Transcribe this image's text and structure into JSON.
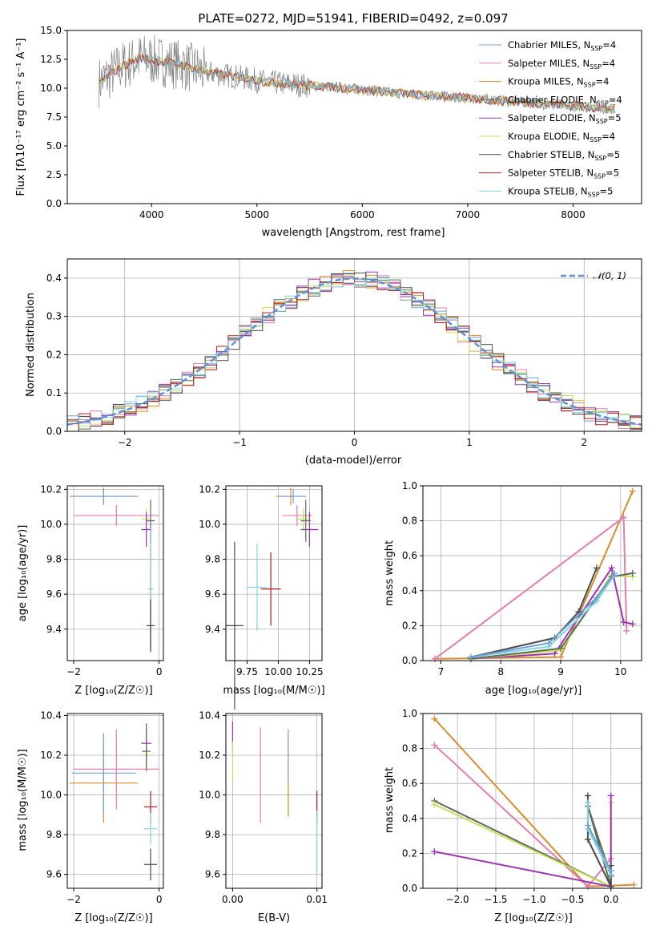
{
  "colors": {
    "chabrier_miles": "#6f9fd8",
    "salpeter_miles": "#e37cb0",
    "kroupa_miles": "#d98c2b",
    "chabrier_elodie": "#5a6c5a",
    "salpeter_elodie": "#9b32b2",
    "kroupa_elodie": "#c6df5a",
    "chabrier_stelib": "#4a4a4a",
    "salpeter_stelib": "#b31b1b",
    "kroupa_stelib": "#7fd5e0",
    "gauss": "#5f8fd6",
    "data": "#808080"
  },
  "chart_data": [
    {
      "id": "spectrum",
      "type": "line",
      "title": "PLATE=0272, MJD=51941, FIBERID=0492, z=0.097",
      "xlabel": "wavelength [Angstrom, rest frame]",
      "ylabel": "Flux [fλ10⁻¹⁷ erg cm⁻² s⁻¹ A⁻¹]",
      "xlim": [
        3200,
        8650
      ],
      "ylim": [
        0,
        15
      ],
      "xticks": [
        "4000",
        "5000",
        "6000",
        "7000",
        "8000"
      ],
      "yticks": [
        "0.0",
        "2.5",
        "5.0",
        "7.5",
        "10.0",
        "12.5",
        "15.0"
      ],
      "legend": [
        {
          "label": "Chabrier MILES, N",
          "sub": "SSP",
          "tail": "=4",
          "color_key": "chabrier_miles"
        },
        {
          "label": "Salpeter MILES, N",
          "sub": "SSP",
          "tail": "=4",
          "color_key": "salpeter_miles"
        },
        {
          "label": "Kroupa MILES, N",
          "sub": "SSP",
          "tail": "=4",
          "color_key": "kroupa_miles"
        },
        {
          "label": "Chabrier ELODIE, N",
          "sub": "SSP",
          "tail": "=4",
          "color_key": "chabrier_elodie"
        },
        {
          "label": "Salpeter ELODIE, N",
          "sub": "SSP",
          "tail": "=5",
          "color_key": "salpeter_elodie"
        },
        {
          "label": "Kroupa ELODIE, N",
          "sub": "SSP",
          "tail": "=4",
          "color_key": "kroupa_elodie"
        },
        {
          "label": "Chabrier STELIB, N",
          "sub": "SSP",
          "tail": "=5",
          "color_key": "chabrier_stelib"
        },
        {
          "label": "Salpeter STELIB, N",
          "sub": "SSP",
          "tail": "=5",
          "color_key": "salpeter_stelib"
        },
        {
          "label": "Kroupa STELIB, N",
          "sub": "SSP",
          "tail": "=5",
          "color_key": "kroupa_stelib"
        }
      ],
      "series": [
        {
          "x": [
            3500,
            3700,
            3900,
            4100,
            4300,
            4500,
            4800,
            5100,
            5400,
            5700,
            6000,
            6300,
            6600,
            6900,
            7200,
            7500,
            7800,
            8100,
            8400
          ],
          "y": [
            10.5,
            11.8,
            12.6,
            12.3,
            12.0,
            11.4,
            11.0,
            10.5,
            10.3,
            10.1,
            9.9,
            9.6,
            9.4,
            9.2,
            9.0,
            8.8,
            8.6,
            8.4,
            8.2
          ]
        }
      ]
    },
    {
      "id": "residuals",
      "type": "line",
      "xlabel": "(data-model)/error",
      "ylabel": "Normed distribution",
      "xlim": [
        -2.5,
        2.5
      ],
      "ylim": [
        0,
        0.45
      ],
      "xticks": [
        "−2",
        "−1",
        "0",
        "1",
        "2"
      ],
      "yticks": [
        "0.0",
        "0.1",
        "0.2",
        "0.3",
        "0.4"
      ],
      "legend": [
        {
          "label": "𝒩(0, 1)",
          "color_key": "gauss"
        }
      ],
      "series": [
        {
          "name": "𝒩(0, 1)",
          "x": [
            -2.5,
            -2.0,
            -1.5,
            -1.0,
            -0.5,
            0,
            0.5,
            1.0,
            1.5,
            2.0,
            2.5
          ],
          "y": [
            0.018,
            0.054,
            0.13,
            0.242,
            0.352,
            0.399,
            0.352,
            0.242,
            0.13,
            0.054,
            0.018
          ]
        }
      ]
    },
    {
      "id": "age-vs-Z",
      "type": "scatter",
      "xlabel": "Z [log₁₀(Z/Z☉)]",
      "ylabel": "age  [log₁₀(age/yr)]",
      "xlim": [
        -2.15,
        0.1
      ],
      "ylim": [
        9.22,
        10.22
      ],
      "xticks": [
        "−2",
        "0"
      ],
      "yticks": [
        "9.4",
        "9.6",
        "9.8",
        "10.0",
        "10.2"
      ],
      "points": [
        {
          "x": -1.3,
          "y": 10.16,
          "xerr": 0.8,
          "yerr": 0.05,
          "color_key": "kroupa_miles"
        },
        {
          "x": -1.3,
          "y": 10.16,
          "xerr": 0.75,
          "yerr": 0.04,
          "color_key": "chabrier_miles"
        },
        {
          "x": -1.0,
          "y": 10.05,
          "xerr": 1.0,
          "yerr": 0.06,
          "color_key": "salpeter_miles"
        },
        {
          "x": -0.3,
          "y": 10.03,
          "xerr": 0.1,
          "yerr": 0.06,
          "color_key": "kroupa_elodie"
        },
        {
          "x": -0.3,
          "y": 9.97,
          "xerr": 0.12,
          "yerr": 0.1,
          "color_key": "salpeter_elodie"
        },
        {
          "x": -0.2,
          "y": 10.02,
          "xerr": 0.1,
          "yerr": 0.12,
          "color_key": "chabrier_elodie"
        },
        {
          "x": -0.2,
          "y": 9.63,
          "xerr": 0.05,
          "yerr": 0.35,
          "color_key": "salpeter_stelib"
        },
        {
          "x": -0.2,
          "y": 9.63,
          "xerr": 0.05,
          "yerr": 0.35,
          "color_key": "kroupa_stelib"
        },
        {
          "x": -0.2,
          "y": 9.42,
          "xerr": 0.1,
          "yerr": 0.15,
          "color_key": "chabrier_stelib"
        }
      ]
    },
    {
      "id": "age-vs-mass",
      "type": "scatter",
      "xlabel": "mass [log₁₀(M/M☉)]",
      "xlim": [
        9.58,
        10.35
      ],
      "ylim": [
        9.22,
        10.22
      ],
      "xticks": [
        "9.75",
        "10.00",
        "10.25"
      ],
      "yticks": [
        "9.4",
        "9.6",
        "9.8",
        "10.0",
        "10.2"
      ],
      "points": [
        {
          "x": 10.1,
          "y": 10.16,
          "xerr": 0.12,
          "yerr": 0.05,
          "color_key": "kroupa_miles"
        },
        {
          "x": 10.12,
          "y": 10.16,
          "xerr": 0.1,
          "yerr": 0.04,
          "color_key": "chabrier_miles"
        },
        {
          "x": 10.15,
          "y": 10.05,
          "xerr": 0.12,
          "yerr": 0.06,
          "color_key": "salpeter_miles"
        },
        {
          "x": 10.2,
          "y": 10.03,
          "xerr": 0.06,
          "yerr": 0.06,
          "color_key": "kroupa_elodie"
        },
        {
          "x": 10.25,
          "y": 9.97,
          "xerr": 0.07,
          "yerr": 0.1,
          "color_key": "salpeter_elodie"
        },
        {
          "x": 10.22,
          "y": 10.02,
          "xerr": 0.04,
          "yerr": 0.12,
          "color_key": "chabrier_elodie"
        },
        {
          "x": 9.94,
          "y": 9.63,
          "xerr": 0.08,
          "yerr": 0.21,
          "color_key": "salpeter_stelib"
        },
        {
          "x": 9.83,
          "y": 9.64,
          "xerr": 0.08,
          "yerr": 0.25,
          "color_key": "kroupa_stelib"
        },
        {
          "x": 9.65,
          "y": 9.42,
          "xerr": 0.07,
          "yerr": 0.48,
          "color_key": "chabrier_stelib"
        }
      ]
    },
    {
      "id": "massweight-vs-age",
      "type": "line",
      "xlabel": "age  [log₁₀(age/yr)]",
      "ylabel": "mass weight",
      "xlim": [
        6.7,
        10.35
      ],
      "ylim": [
        0,
        1.0
      ],
      "xticks": [
        "7",
        "8",
        "9",
        "10"
      ],
      "yticks": [
        "0.0",
        "0.2",
        "0.4",
        "0.6",
        "0.8",
        "1.0"
      ],
      "series": [
        {
          "color_key": "kroupa_miles",
          "x": [
            6.9,
            9.0,
            10.2
          ],
          "y": [
            0.01,
            0.02,
            0.97
          ]
        },
        {
          "color_key": "salpeter_miles",
          "x": [
            6.9,
            10.05,
            10.1
          ],
          "y": [
            0.01,
            0.82,
            0.17
          ]
        },
        {
          "color_key": "chabrier_stelib",
          "x": [
            7.5,
            8.9,
            9.3,
            9.6
          ],
          "y": [
            0.02,
            0.13,
            0.28,
            0.53
          ]
        },
        {
          "color_key": "salpeter_elodie",
          "x": [
            7.5,
            8.9,
            9.85,
            10.05,
            10.2
          ],
          "y": [
            0.01,
            0.04,
            0.53,
            0.22,
            0.21
          ]
        },
        {
          "color_key": "kroupa_elodie",
          "x": [
            7.5,
            9.0,
            9.85,
            10.2
          ],
          "y": [
            0.01,
            0.06,
            0.49,
            0.48
          ]
        },
        {
          "color_key": "chabrier_elodie",
          "x": [
            7.5,
            9.0,
            9.85,
            10.2
          ],
          "y": [
            0.01,
            0.07,
            0.48,
            0.5
          ]
        },
        {
          "color_key": "kroupa_stelib",
          "x": [
            7.5,
            8.8,
            9.6,
            9.9
          ],
          "y": [
            0.02,
            0.08,
            0.34,
            0.49
          ]
        },
        {
          "color_key": "chabrier_miles",
          "x": [
            7.5,
            8.8,
            9.6,
            9.9
          ],
          "y": [
            0.02,
            0.1,
            0.36,
            0.5
          ]
        }
      ]
    },
    {
      "id": "mass-vs-Z",
      "type": "scatter",
      "xlabel": "Z [log₁₀(Z/Z☉)]",
      "ylabel": "mass [log₁₀(M/M☉)]",
      "xlim": [
        -2.15,
        0.1
      ],
      "ylim": [
        9.53,
        10.41
      ],
      "xticks": [
        "−2",
        "0"
      ],
      "yticks": [
        "9.6",
        "9.8",
        "10.0",
        "10.2",
        "10.4"
      ],
      "points": [
        {
          "x": -1.3,
          "y": 10.06,
          "xerr": 0.8,
          "yerr": 0.2,
          "color_key": "kroupa_miles"
        },
        {
          "x": -1.3,
          "y": 10.11,
          "xerr": 0.75,
          "yerr": 0.2,
          "color_key": "chabrier_miles"
        },
        {
          "x": -1.0,
          "y": 10.13,
          "xerr": 1.0,
          "yerr": 0.2,
          "color_key": "salpeter_miles"
        },
        {
          "x": -0.3,
          "y": 10.2,
          "xerr": 0.1,
          "yerr": 0.08,
          "color_key": "kroupa_elodie"
        },
        {
          "x": -0.3,
          "y": 10.26,
          "xerr": 0.12,
          "yerr": 0.1,
          "color_key": "salpeter_elodie"
        },
        {
          "x": -0.3,
          "y": 10.22,
          "xerr": 0.1,
          "yerr": 0.1,
          "color_key": "chabrier_elodie"
        },
        {
          "x": -0.2,
          "y": 9.94,
          "xerr": 0.15,
          "yerr": 0.08,
          "color_key": "salpeter_stelib"
        },
        {
          "x": -0.2,
          "y": 9.83,
          "xerr": 0.15,
          "yerr": 0.08,
          "color_key": "kroupa_stelib"
        },
        {
          "x": -0.2,
          "y": 9.65,
          "xerr": 0.15,
          "yerr": 0.08,
          "color_key": "chabrier_stelib"
        }
      ]
    },
    {
      "id": "mass-vs-ebv",
      "type": "scatter",
      "xlabel": "E(B-V)",
      "xlim": [
        -0.0008,
        0.0106
      ],
      "ylim": [
        9.53,
        10.41
      ],
      "xticks": [
        "0.00",
        "0.01"
      ],
      "yticks": [
        "9.6",
        "9.8",
        "10.0",
        "10.2",
        "10.4"
      ],
      "points": [
        {
          "x": 0.0,
          "y": 10.3,
          "xerr": 0,
          "yerr": 0.07,
          "color_key": "salpeter_elodie"
        },
        {
          "x": 0.0,
          "y": 10.17,
          "xerr": 0,
          "yerr": 0.1,
          "color_key": "kroupa_elodie"
        },
        {
          "x": 0.0033,
          "y": 10.1,
          "xerr": 0,
          "yerr": 0.24,
          "color_key": "salpeter_miles"
        },
        {
          "x": 0.0066,
          "y": 10.1,
          "xerr": 0,
          "yerr": 0.21,
          "color_key": "kroupa_miles"
        },
        {
          "x": 0.0066,
          "y": 10.2,
          "xerr": 0,
          "yerr": 0.13,
          "color_key": "chabrier_miles"
        },
        {
          "x": 0.01,
          "y": 9.94,
          "xerr": 0,
          "yerr": 0.08,
          "color_key": "salpeter_stelib"
        },
        {
          "x": 0.01,
          "y": 9.76,
          "xerr": 0,
          "yerr": 0.16,
          "color_key": "kroupa_stelib"
        }
      ]
    },
    {
      "id": "massweight-vs-Z",
      "type": "line",
      "xlabel": "Z [log₁₀(Z/Z☉)]",
      "ylabel": "mass weight",
      "xlim": [
        -2.45,
        0.4
      ],
      "ylim": [
        0,
        1.0
      ],
      "xticks": [
        "−2.0",
        "−1.5",
        "−1.0",
        "−0.5",
        "0.0"
      ],
      "yticks": [
        "0.0",
        "0.2",
        "0.4",
        "0.6",
        "0.8",
        "1.0"
      ],
      "series": [
        {
          "color_key": "kroupa_miles",
          "x": [
            -2.3,
            -0.3,
            0.3
          ],
          "y": [
            0.97,
            0.01,
            0.02
          ]
        },
        {
          "color_key": "salpeter_miles",
          "x": [
            -2.3,
            -0.3,
            0.0
          ],
          "y": [
            0.82,
            0.01,
            0.17
          ]
        },
        {
          "color_key": "chabrier_elodie",
          "x": [
            -2.3,
            0.0,
            -0.3,
            0.0
          ],
          "y": [
            0.5,
            0.01,
            0.47,
            0.07
          ]
        },
        {
          "color_key": "kroupa_elodie",
          "x": [
            -2.3,
            0.0,
            0.0
          ],
          "y": [
            0.48,
            0.01,
            0.49
          ]
        },
        {
          "color_key": "salpeter_elodie",
          "x": [
            -2.3,
            0.0,
            0.0
          ],
          "y": [
            0.21,
            0.01,
            0.53
          ]
        },
        {
          "color_key": "chabrier_stelib",
          "x": [
            -0.3,
            -0.3,
            0.0,
            0.0
          ],
          "y": [
            0.53,
            0.28,
            0.01,
            0.13
          ]
        },
        {
          "color_key": "kroupa_stelib",
          "x": [
            -0.3,
            -0.3,
            0.0
          ],
          "y": [
            0.49,
            0.34,
            0.08
          ]
        },
        {
          "color_key": "chabrier_miles",
          "x": [
            -0.3,
            0.0
          ],
          "y": [
            0.36,
            0.1
          ]
        }
      ]
    }
  ]
}
